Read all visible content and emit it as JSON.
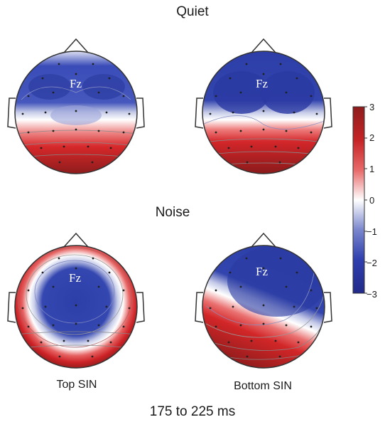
{
  "rows": [
    {
      "title": "Quiet"
    },
    {
      "title": "Noise"
    }
  ],
  "columns": [
    {
      "label": "Top SIN"
    },
    {
      "label": "Bottom SIN"
    }
  ],
  "electrode_label": "Fz",
  "time_window": "175 to 225 ms",
  "colorbar": {
    "ticks": [
      "3",
      "2",
      "1",
      "0",
      "−1",
      "−2",
      "−3"
    ],
    "colors": {
      "max": "#8e1c1c",
      "high": "#d8282a",
      "mid": "#ffffff",
      "low": "#2c3ea8",
      "min": "#232a8e"
    }
  },
  "maps": [
    {
      "condition": "Quiet",
      "group": "Top SIN",
      "fz_value": -2.6
    },
    {
      "condition": "Quiet",
      "group": "Bottom SIN",
      "fz_value": -2.8
    },
    {
      "condition": "Noise",
      "group": "Top SIN",
      "fz_value": -2.7
    },
    {
      "condition": "Noise",
      "group": "Bottom SIN",
      "fz_value": -2.9
    }
  ]
}
